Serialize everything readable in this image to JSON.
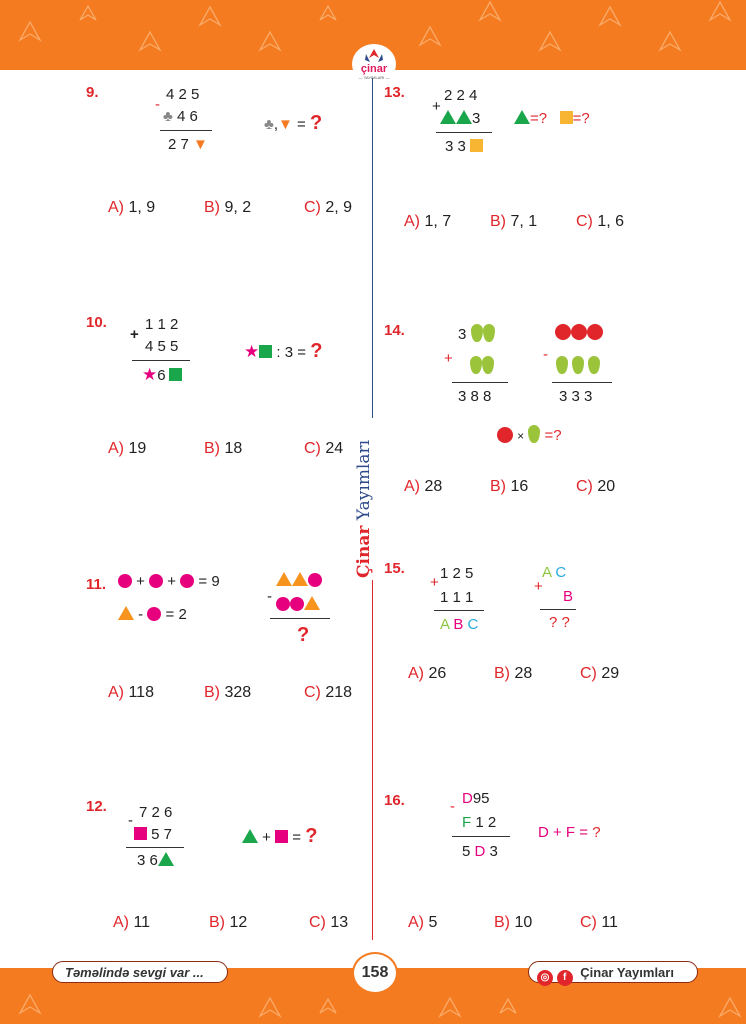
{
  "header": {
    "logo_name": "çinar",
    "logo_sub": "— YAYIMLARI —"
  },
  "side_brand": {
    "part1": "Çinar",
    "part2": "Yayımları"
  },
  "footer": {
    "motto": "Təməlində sevgi var ...",
    "page": "158",
    "publisher": "Çinar Yayımları"
  },
  "colors": {
    "orange": "#f47b20",
    "red": "#e0262b",
    "navy": "#2d4a8a",
    "green": "#1aa64a",
    "magenta": "#e6007e"
  },
  "problems": {
    "p9": {
      "num": "9.",
      "row1": "4 2 5",
      "row2": "4 6",
      "row3": "2 7",
      "op": "-",
      "question": "=",
      "mark": "?",
      "options": [
        {
          "l": "A)",
          "v": "1, 9"
        },
        {
          "l": "B)",
          "v": "9, 2"
        },
        {
          "l": "C)",
          "v": "2, 9"
        }
      ]
    },
    "p10": {
      "num": "10.",
      "row1": "1 1 2",
      "row2": "4 5 5",
      "row3": "6",
      "op": "+",
      "question": ": 3 =",
      "mark": "?",
      "options": [
        {
          "l": "A)",
          "v": "19"
        },
        {
          "l": "B)",
          "v": "18"
        },
        {
          "l": "C)",
          "v": "24"
        }
      ]
    },
    "p11": {
      "num": "11.",
      "eq1": "= 9",
      "eq2": "= 2",
      "op": "-",
      "mark": "?",
      "options": [
        {
          "l": "A)",
          "v": "118"
        },
        {
          "l": "B)",
          "v": "328"
        },
        {
          "l": "C)",
          "v": "218"
        }
      ]
    },
    "p12": {
      "num": "12.",
      "row1": "7 2 6",
      "row2": "5 7",
      "row3": "3 6",
      "op": "-",
      "question": "=",
      "mark": "?",
      "options": [
        {
          "l": "A)",
          "v": "11"
        },
        {
          "l": "B)",
          "v": "12"
        },
        {
          "l": "C)",
          "v": "13"
        }
      ]
    },
    "p13": {
      "num": "13.",
      "row1": "2 2 4",
      "row2": "3",
      "row3": "3 3",
      "op": "+",
      "q1": "=?",
      "q2": "=?",
      "options": [
        {
          "l": "A)",
          "v": "1, 7"
        },
        {
          "l": "B)",
          "v": "7, 1"
        },
        {
          "l": "C)",
          "v": "1, 6"
        }
      ]
    },
    "p14": {
      "num": "14.",
      "left_top": "3",
      "left_res": "3 8 8",
      "right_res": "3 3 3",
      "opl": "+",
      "opr": "-",
      "question": "=?",
      "options": [
        {
          "l": "A)",
          "v": "28"
        },
        {
          "l": "B)",
          "v": "16"
        },
        {
          "l": "C)",
          "v": "20"
        }
      ]
    },
    "p15": {
      "num": "15.",
      "row1": "1 2 5",
      "row2": "1 1 1",
      "op": "+",
      "A": "A",
      "B": "B",
      "C": "C",
      "qq": "? ?",
      "options": [
        {
          "l": "A)",
          "v": "26"
        },
        {
          "l": "B)",
          "v": "28"
        },
        {
          "l": "C)",
          "v": "29"
        }
      ]
    },
    "p16": {
      "num": "16.",
      "D": "D",
      "F": "F",
      "r1rest": "95",
      "r2rest": "1 2",
      "r3a": "5",
      "r3b": "3",
      "op": "-",
      "eq": "D + F =",
      "mark": "?",
      "options": [
        {
          "l": "A)",
          "v": "5"
        },
        {
          "l": "B)",
          "v": "10"
        },
        {
          "l": "C)",
          "v": "11"
        }
      ]
    }
  }
}
